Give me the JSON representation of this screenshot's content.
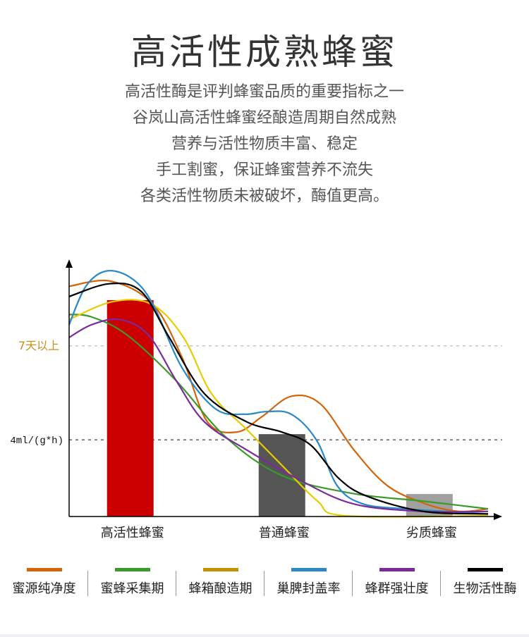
{
  "title": "高活性成熟蜂蜜",
  "subtitle_lines": [
    "高活性酶是评判蜂蜜品质的重要指标之一",
    "谷岚山高活性蜂蜜经酿造周期自然成熟",
    "营养与活性物质丰富、稳定",
    "手工割蜜，保证蜂蜜营养不流失",
    "各类活性物质未被破坏，酶值更高。"
  ],
  "chart_data": {
    "type": "line",
    "title": "",
    "xlabel": "",
    "ylabel": "",
    "xlim": [
      0,
      100
    ],
    "ylim": [
      0,
      100
    ],
    "categories": [
      "高活性蜂蜜",
      "普通蜂蜜",
      "劣质蜂蜜"
    ],
    "category_x": [
      14.6,
      50.8,
      86
    ],
    "bars": [
      {
        "category": "高活性蜂蜜",
        "value": 84.6,
        "color": "#cc0000"
      },
      {
        "category": "普通蜂蜜",
        "value": 32.2,
        "color": "#555555"
      },
      {
        "category": "劣质蜂蜜",
        "value": 8.8,
        "color": "#a0a0a0"
      }
    ],
    "reference_lines": [
      {
        "label": "7天以上",
        "value": 66.7,
        "color": "#c8901a"
      },
      {
        "label": "4ml/(g*h)",
        "value": 30,
        "color": "#111111"
      }
    ],
    "series": [
      {
        "name": "蜜源纯净度",
        "color": "#d4640a",
        "legend_color": "#d4640a",
        "points": [
          [
            0,
            90
          ],
          [
            10,
            92
          ],
          [
            20,
            83
          ],
          [
            27,
            62
          ],
          [
            33,
            37
          ],
          [
            40,
            33
          ],
          [
            46,
            39
          ],
          [
            53,
            47
          ],
          [
            60,
            44
          ],
          [
            68,
            26
          ],
          [
            76,
            12
          ],
          [
            85,
            5
          ],
          [
            93,
            2
          ],
          [
            100,
            3
          ]
        ]
      },
      {
        "name": "蜜蜂采集期",
        "color": "#3a9a2a",
        "legend_color": "#3a9a2a",
        "points": [
          [
            0,
            79
          ],
          [
            5.4,
            78
          ],
          [
            13.8,
            71
          ],
          [
            25.6,
            53
          ],
          [
            37.4,
            31
          ],
          [
            50.8,
            16
          ],
          [
            67.7,
            9
          ],
          [
            84.5,
            6
          ],
          [
            100,
            3
          ]
        ]
      },
      {
        "name": "蜂箱酿造期",
        "color": "#e8cc00",
        "legend_color": "#c09000",
        "points": [
          [
            0,
            77
          ],
          [
            10.4,
            84
          ],
          [
            19.7,
            83
          ],
          [
            27.3,
            70
          ],
          [
            34,
            48
          ],
          [
            42.4,
            34
          ],
          [
            50.8,
            20
          ],
          [
            59.3,
            6
          ],
          [
            66,
            0.3
          ],
          [
            100,
            0.3
          ]
        ]
      },
      {
        "name": "巢脾封盖率",
        "color": "#2a88c8",
        "legend_color": "#2a88c8",
        "points": [
          [
            0,
            75
          ],
          [
            4,
            90
          ],
          [
            9,
            96
          ],
          [
            15,
            93
          ],
          [
            20,
            83
          ],
          [
            27,
            58
          ],
          [
            35,
            42
          ],
          [
            42,
            40
          ],
          [
            47,
            41
          ],
          [
            53,
            40
          ],
          [
            59,
            30
          ],
          [
            64,
            12
          ],
          [
            70,
            5
          ],
          [
            80,
            3
          ],
          [
            100,
            1
          ]
        ]
      },
      {
        "name": "蜂群强壮度",
        "color": "#7a2a9a",
        "legend_color": "#7a2a9a",
        "points": [
          [
            0,
            70
          ],
          [
            5.4,
            75
          ],
          [
            12.1,
            77
          ],
          [
            18.9,
            71
          ],
          [
            25.6,
            53
          ],
          [
            32.3,
            37
          ],
          [
            42.4,
            26
          ],
          [
            54.2,
            15
          ],
          [
            67.7,
            5
          ],
          [
            84.5,
            2
          ],
          [
            100,
            2
          ]
        ]
      },
      {
        "name": "生物活性酶",
        "color": "#000000",
        "legend_color": "#000000",
        "points": [
          [
            0,
            86
          ],
          [
            9.6,
            91
          ],
          [
            17.2,
            88
          ],
          [
            23.9,
            70
          ],
          [
            32.3,
            48
          ],
          [
            42.4,
            37
          ],
          [
            50.8,
            33
          ],
          [
            57.6,
            28
          ],
          [
            64.3,
            15
          ],
          [
            71,
            8
          ],
          [
            84.5,
            2
          ],
          [
            100,
            1
          ]
        ]
      }
    ]
  }
}
